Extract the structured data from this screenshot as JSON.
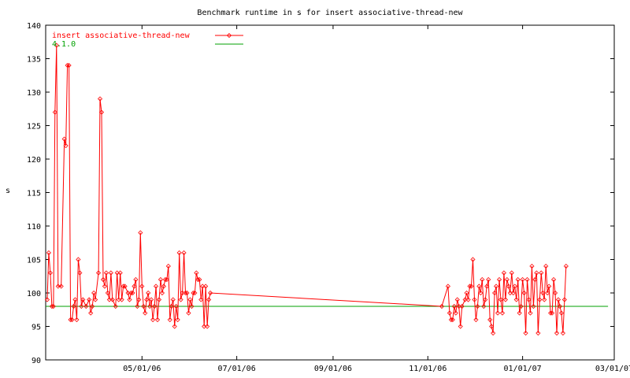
{
  "chart_data": {
    "type": "line",
    "title": "Benchmark runtime in s for insert associative-thread-new",
    "xlabel": "",
    "ylabel": "s",
    "x_axis": {
      "type": "date",
      "range": [
        "2006-02-28",
        "2007-03-01"
      ],
      "tick_labels": [
        "05/01/06",
        "07/01/06",
        "09/01/06",
        "11/01/06",
        "01/01/07",
        "03/01/07"
      ],
      "tick_dates": [
        "2006-05-01",
        "2006-07-01",
        "2006-09-01",
        "2006-11-01",
        "2007-01-01",
        "2007-03-01"
      ]
    },
    "y_axis": {
      "range": [
        90,
        140
      ],
      "ticks": [
        90,
        95,
        100,
        105,
        110,
        115,
        120,
        125,
        130,
        135,
        140
      ]
    },
    "grid": false,
    "legend_position": "top-left",
    "series": [
      {
        "name": "insert associative-thread-new",
        "color": "#ff0000",
        "marker": "diamond",
        "points": [
          [
            "2006-03-01",
            99
          ],
          [
            "2006-03-02",
            106
          ],
          [
            "2006-03-03",
            103
          ],
          [
            "2006-03-04",
            98
          ],
          [
            "2006-03-05",
            98
          ],
          [
            "2006-03-06",
            127
          ],
          [
            "2006-03-07",
            137
          ],
          [
            "2006-03-08",
            101
          ],
          [
            "2006-03-10",
            101
          ],
          [
            "2006-03-12",
            123
          ],
          [
            "2006-03-13",
            122
          ],
          [
            "2006-03-14",
            134
          ],
          [
            "2006-03-15",
            134
          ],
          [
            "2006-03-16",
            96
          ],
          [
            "2006-03-17",
            96
          ],
          [
            "2006-03-18",
            98
          ],
          [
            "2006-03-19",
            99
          ],
          [
            "2006-03-20",
            96
          ],
          [
            "2006-03-21",
            105
          ],
          [
            "2006-03-22",
            103
          ],
          [
            "2006-03-23",
            98
          ],
          [
            "2006-03-24",
            99
          ],
          [
            "2006-03-26",
            98
          ],
          [
            "2006-03-28",
            99
          ],
          [
            "2006-03-29",
            97
          ],
          [
            "2006-03-30",
            98
          ],
          [
            "2006-03-31",
            100
          ],
          [
            "2006-04-01",
            99
          ],
          [
            "2006-04-03",
            103
          ],
          [
            "2006-04-04",
            129
          ],
          [
            "2006-04-05",
            127
          ],
          [
            "2006-04-06",
            102
          ],
          [
            "2006-04-07",
            101
          ],
          [
            "2006-04-08",
            103
          ],
          [
            "2006-04-09",
            100
          ],
          [
            "2006-04-10",
            99
          ],
          [
            "2006-04-11",
            103
          ],
          [
            "2006-04-12",
            99
          ],
          [
            "2006-04-14",
            98
          ],
          [
            "2006-04-15",
            103
          ],
          [
            "2006-04-16",
            99
          ],
          [
            "2006-04-17",
            103
          ],
          [
            "2006-04-18",
            99
          ],
          [
            "2006-04-19",
            101
          ],
          [
            "2006-04-20",
            101
          ],
          [
            "2006-04-22",
            100
          ],
          [
            "2006-04-23",
            99
          ],
          [
            "2006-04-24",
            100
          ],
          [
            "2006-04-25",
            100
          ],
          [
            "2006-04-26",
            101
          ],
          [
            "2006-04-27",
            102
          ],
          [
            "2006-04-28",
            98
          ],
          [
            "2006-04-29",
            99
          ],
          [
            "2006-04-30",
            109
          ],
          [
            "2006-05-01",
            101
          ],
          [
            "2006-05-02",
            98
          ],
          [
            "2006-05-03",
            97
          ],
          [
            "2006-05-04",
            99
          ],
          [
            "2006-05-05",
            100
          ],
          [
            "2006-05-06",
            98
          ],
          [
            "2006-05-07",
            99
          ],
          [
            "2006-05-08",
            96
          ],
          [
            "2006-05-09",
            98
          ],
          [
            "2006-05-10",
            101
          ],
          [
            "2006-05-11",
            96
          ],
          [
            "2006-05-12",
            99
          ],
          [
            "2006-05-13",
            102
          ],
          [
            "2006-05-14",
            100
          ],
          [
            "2006-05-15",
            101
          ],
          [
            "2006-05-16",
            102
          ],
          [
            "2006-05-17",
            102
          ],
          [
            "2006-05-18",
            104
          ],
          [
            "2006-05-19",
            96
          ],
          [
            "2006-05-20",
            98
          ],
          [
            "2006-05-21",
            99
          ],
          [
            "2006-05-22",
            95
          ],
          [
            "2006-05-23",
            98
          ],
          [
            "2006-05-24",
            96
          ],
          [
            "2006-05-25",
            106
          ],
          [
            "2006-05-26",
            99
          ],
          [
            "2006-05-27",
            100
          ],
          [
            "2006-05-28",
            106
          ],
          [
            "2006-05-29",
            100
          ],
          [
            "2006-05-30",
            100
          ],
          [
            "2006-05-31",
            97
          ],
          [
            "2006-06-01",
            99
          ],
          [
            "2006-06-02",
            98
          ],
          [
            "2006-06-03",
            100
          ],
          [
            "2006-06-04",
            100
          ],
          [
            "2006-06-05",
            103
          ],
          [
            "2006-06-06",
            102
          ],
          [
            "2006-06-07",
            102
          ],
          [
            "2006-06-08",
            99
          ],
          [
            "2006-06-09",
            101
          ],
          [
            "2006-06-10",
            95
          ],
          [
            "2006-06-11",
            101
          ],
          [
            "2006-06-12",
            95
          ],
          [
            "2006-06-13",
            99
          ],
          [
            "2006-06-14",
            100
          ],
          [
            "2006-11-10",
            98
          ],
          [
            "2006-11-14",
            101
          ],
          [
            "2006-11-15",
            97
          ],
          [
            "2006-11-16",
            96
          ],
          [
            "2006-11-17",
            96
          ],
          [
            "2006-11-18",
            98
          ],
          [
            "2006-11-19",
            97
          ],
          [
            "2006-11-20",
            99
          ],
          [
            "2006-11-21",
            98
          ],
          [
            "2006-11-22",
            95
          ],
          [
            "2006-11-23",
            98
          ],
          [
            "2006-11-25",
            99
          ],
          [
            "2006-11-26",
            100
          ],
          [
            "2006-11-27",
            99
          ],
          [
            "2006-11-28",
            101
          ],
          [
            "2006-11-29",
            101
          ],
          [
            "2006-11-30",
            105
          ],
          [
            "2006-12-01",
            99
          ],
          [
            "2006-12-02",
            96
          ],
          [
            "2006-12-03",
            98
          ],
          [
            "2006-12-04",
            101
          ],
          [
            "2006-12-05",
            100
          ],
          [
            "2006-12-06",
            102
          ],
          [
            "2006-12-07",
            98
          ],
          [
            "2006-12-08",
            99
          ],
          [
            "2006-12-09",
            101
          ],
          [
            "2006-12-10",
            102
          ],
          [
            "2006-12-11",
            96
          ],
          [
            "2006-12-12",
            95
          ],
          [
            "2006-12-13",
            94
          ],
          [
            "2006-12-14",
            100
          ],
          [
            "2006-12-15",
            101
          ],
          [
            "2006-12-16",
            97
          ],
          [
            "2006-12-17",
            102
          ],
          [
            "2006-12-18",
            99
          ],
          [
            "2006-12-19",
            97
          ],
          [
            "2006-12-20",
            103
          ],
          [
            "2006-12-21",
            99
          ],
          [
            "2006-12-22",
            102
          ],
          [
            "2006-12-23",
            101
          ],
          [
            "2006-12-24",
            100
          ],
          [
            "2006-12-25",
            103
          ],
          [
            "2006-12-26",
            100
          ],
          [
            "2006-12-27",
            101
          ],
          [
            "2006-12-28",
            99
          ],
          [
            "2006-12-29",
            102
          ],
          [
            "2006-12-30",
            97
          ],
          [
            "2006-12-31",
            98
          ],
          [
            "2007-01-01",
            102
          ],
          [
            "2007-01-02",
            100
          ],
          [
            "2007-01-03",
            94
          ],
          [
            "2007-01-04",
            102
          ],
          [
            "2007-01-05",
            99
          ],
          [
            "2007-01-06",
            97
          ],
          [
            "2007-01-07",
            104
          ],
          [
            "2007-01-08",
            98
          ],
          [
            "2007-01-09",
            102
          ],
          [
            "2007-01-10",
            103
          ],
          [
            "2007-01-11",
            94
          ],
          [
            "2007-01-12",
            99
          ],
          [
            "2007-01-13",
            103
          ],
          [
            "2007-01-14",
            100
          ],
          [
            "2007-01-15",
            99
          ],
          [
            "2007-01-16",
            104
          ],
          [
            "2007-01-17",
            100
          ],
          [
            "2007-01-18",
            101
          ],
          [
            "2007-01-19",
            97
          ],
          [
            "2007-01-20",
            97
          ],
          [
            "2007-01-21",
            102
          ],
          [
            "2007-01-22",
            100
          ],
          [
            "2007-01-23",
            94
          ],
          [
            "2007-01-24",
            99
          ],
          [
            "2007-01-25",
            98
          ],
          [
            "2007-01-26",
            97
          ],
          [
            "2007-01-27",
            94
          ],
          [
            "2007-01-28",
            99
          ],
          [
            "2007-01-29",
            104
          ]
        ]
      },
      {
        "name": "4.1.0",
        "color": "#00a000",
        "marker": "none",
        "points": [
          [
            "2006-02-28",
            98
          ],
          [
            "2007-02-25",
            98
          ]
        ]
      }
    ]
  }
}
